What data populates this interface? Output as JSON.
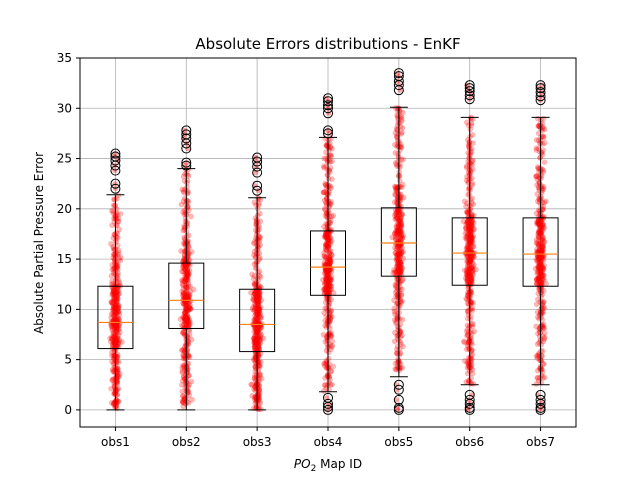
{
  "chart_data": {
    "type": "boxplot",
    "title": "Absolute Errors distributions - EnKF",
    "xlabel_main": "PO",
    "xlabel_sub": "2",
    "xlabel_rest": " Map ID",
    "ylabel": "Absolute Partial Pressure Error",
    "ylim": [
      -1.7,
      35
    ],
    "yticks": [
      0,
      5,
      10,
      15,
      20,
      25,
      30,
      35
    ],
    "grid": true,
    "categories": [
      "obs1",
      "obs2",
      "obs3",
      "obs4",
      "obs5",
      "obs6",
      "obs7"
    ],
    "boxes": [
      {
        "whisker_low": 0.0,
        "q1": 6.1,
        "median": 8.7,
        "q3": 12.3,
        "whisker_high": 21.4,
        "outliers_high": [
          22.0,
          22.5,
          23.8,
          24.3,
          24.8,
          25.2,
          25.5
        ],
        "outliers_low": []
      },
      {
        "whisker_low": 0.0,
        "q1": 8.1,
        "median": 10.9,
        "q3": 14.6,
        "whisker_high": 24.0,
        "outliers_high": [
          24.3,
          24.6,
          26.0,
          26.5,
          27.0,
          27.4,
          27.8
        ],
        "outliers_low": []
      },
      {
        "whisker_low": 0.0,
        "q1": 5.8,
        "median": 8.5,
        "q3": 12.0,
        "whisker_high": 21.1,
        "outliers_high": [
          21.8,
          22.3,
          23.6,
          24.2,
          24.7,
          25.1
        ],
        "outliers_low": []
      },
      {
        "whisker_low": 1.8,
        "q1": 11.4,
        "median": 14.2,
        "q3": 17.8,
        "whisker_high": 27.1,
        "outliers_high": [
          27.5,
          27.8,
          29.5,
          30.0,
          30.3,
          30.7,
          31.0
        ],
        "outliers_low": [
          1.2,
          0.6,
          0.3,
          0.0
        ]
      },
      {
        "whisker_low": 3.3,
        "q1": 13.3,
        "median": 16.6,
        "q3": 20.1,
        "whisker_high": 30.1,
        "outliers_high": [
          31.8,
          32.3,
          32.7,
          33.2,
          33.5
        ],
        "outliers_low": [
          2.5,
          2.0,
          1.0,
          0.2,
          0.0
        ]
      },
      {
        "whisker_low": 2.5,
        "q1": 12.4,
        "median": 15.6,
        "q3": 19.1,
        "whisker_high": 29.1,
        "outliers_high": [
          30.9,
          31.3,
          31.7,
          32.0,
          32.3
        ],
        "outliers_low": [
          1.5,
          1.0,
          0.6,
          0.2,
          0.0
        ]
      },
      {
        "whisker_low": 2.5,
        "q1": 12.3,
        "median": 15.5,
        "q3": 19.1,
        "whisker_high": 29.1,
        "outliers_high": [
          30.8,
          31.2,
          31.6,
          32.0,
          32.3
        ],
        "outliers_low": [
          1.5,
          1.0,
          0.6,
          0.2,
          0.0
        ]
      }
    ],
    "box_color": "#000000",
    "median_color": "#ff7f0e",
    "scatter_color": "#ff0000",
    "grid_color": "#b0b0b0"
  }
}
